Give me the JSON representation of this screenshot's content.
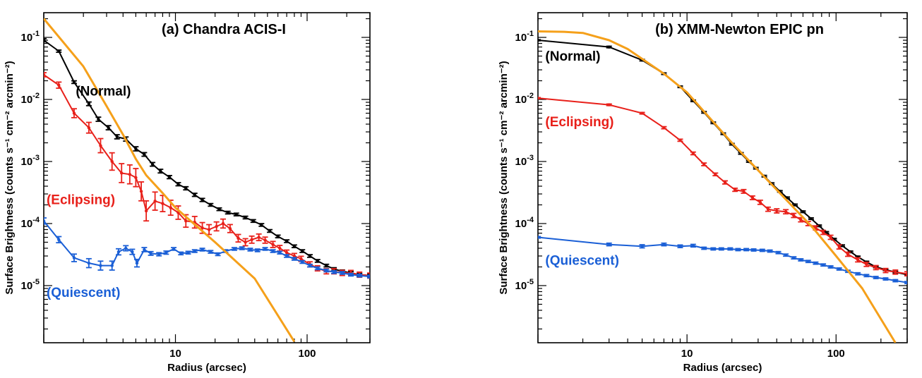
{
  "chart_data": [
    {
      "type": "line",
      "title": "(a) Chandra ACIS-I",
      "xlabel": "Radius (arcsec)",
      "ylabel": "Surface Brightness (counts s⁻¹ cm⁻² arcmin⁻²)",
      "xscale": "log",
      "yscale": "log",
      "xlim": [
        1.0,
        300
      ],
      "ylim": [
        1.2e-06,
        0.25
      ],
      "xticks": [
        {
          "v": 10,
          "label": "10"
        },
        {
          "v": 100,
          "label": "100"
        }
      ],
      "yticks": [
        {
          "v": 1e-05,
          "mant": "10",
          "exp": "-5"
        },
        {
          "v": 0.0001,
          "mant": "10",
          "exp": "-4"
        },
        {
          "v": 0.001,
          "mant": "10",
          "exp": "-3"
        },
        {
          "v": 0.01,
          "mant": "10",
          "exp": "-2"
        },
        {
          "v": 0.1,
          "mant": "10",
          "exp": "-1"
        }
      ],
      "series": [
        {
          "name": "(Normal)",
          "color": "#000000",
          "label_at": [
            1.75,
            0.0115
          ],
          "x": [
            1.0,
            1.3,
            1.7,
            2.2,
            2.6,
            3.1,
            3.6,
            4.2,
            5.0,
            5.8,
            6.7,
            7.7,
            9.0,
            10.5,
            12.0,
            14.0,
            16.0,
            18.5,
            21.5,
            25.0,
            29.0,
            34.0,
            39.0,
            45.0,
            52.0,
            60.0,
            70.0,
            80.0,
            92.0,
            105.0,
            120.0,
            140.0,
            160.0,
            185.0,
            215.0,
            250.0,
            300.0
          ],
          "y": [
            0.09,
            0.06,
            0.019,
            0.0085,
            0.0048,
            0.0035,
            0.0025,
            0.0023,
            0.0016,
            0.0013,
            0.0009,
            0.0007,
            0.00056,
            0.00043,
            0.00037,
            0.00029,
            0.00024,
            0.0002,
            0.00017,
            0.00015,
            0.00014,
            0.000125,
            0.00011,
            9.5e-05,
            7.6e-05,
            6.2e-05,
            5.2e-05,
            4.3e-05,
            3.6e-05,
            3e-05,
            2.5e-05,
            2.1e-05,
            1.85e-05,
            1.7e-05,
            1.6e-05,
            1.5e-05,
            1.45e-05
          ],
          "err": [
            0.06,
            0.04,
            0.05,
            0.07,
            0.08,
            0.08,
            0.08,
            0.08,
            0.08,
            0.07,
            0.07,
            0.07,
            0.06,
            0.06,
            0.06,
            0.06,
            0.06,
            0.05,
            0.05,
            0.05,
            0.05,
            0.05,
            0.05,
            0.05,
            0.05,
            0.05,
            0.05,
            0.05,
            0.05,
            0.05,
            0.05,
            0.05,
            0.05,
            0.05,
            0.05,
            0.05,
            0.05
          ]
        },
        {
          "name": "(Eclipsing)",
          "color": "#e8201a",
          "label_at": [
            1.05,
            0.000205
          ],
          "x": [
            1.0,
            1.3,
            1.7,
            2.2,
            2.7,
            3.3,
            3.9,
            4.5,
            5.0,
            5.5,
            6.0,
            7.0,
            8.0,
            9.2,
            10.5,
            12.0,
            14.0,
            16.0,
            18.0,
            20.5,
            23.0,
            26.0,
            30.0,
            34.0,
            38.0,
            43.0,
            48.0,
            55.0,
            62.0,
            70.0,
            80.0,
            90.0,
            105.0,
            120.0,
            140.0,
            160.0,
            185.0,
            215.0,
            250.0,
            300.0
          ],
          "y": [
            0.025,
            0.017,
            0.006,
            0.0035,
            0.0018,
            0.001,
            0.00065,
            0.00062,
            0.00055,
            0.00033,
            0.00016,
            0.00023,
            0.00021,
            0.00018,
            0.00015,
            0.00011,
            0.000105,
            8.5e-05,
            8e-05,
            9e-05,
            0.0001,
            8.3e-05,
            5.8e-05,
            5e-05,
            5.5e-05,
            6e-05,
            5.4e-05,
            4.6e-05,
            4e-05,
            3.4e-05,
            3e-05,
            2.7e-05,
            2.2e-05,
            1.9e-05,
            1.7e-05,
            1.7e-05,
            1.6e-05,
            1.6e-05,
            1.5e-05,
            1.45e-05
          ],
          "err": [
            0.08,
            0.12,
            0.18,
            0.22,
            0.3,
            0.38,
            0.42,
            0.42,
            0.4,
            0.42,
            0.45,
            0.4,
            0.35,
            0.32,
            0.28,
            0.26,
            0.24,
            0.22,
            0.2,
            0.18,
            0.18,
            0.16,
            0.15,
            0.14,
            0.14,
            0.13,
            0.12,
            0.12,
            0.11,
            0.1,
            0.1,
            0.1,
            0.1,
            0.1,
            0.1,
            0.1,
            0.1,
            0.1,
            0.1,
            0.1
          ]
        },
        {
          "name": "(Quiescent)",
          "color": "#1a5fd6",
          "label_at": [
            1.05,
            6.6e-06
          ],
          "x": [
            1.0,
            1.3,
            1.7,
            2.2,
            2.7,
            3.3,
            3.7,
            4.2,
            4.7,
            5.1,
            5.8,
            6.5,
            7.5,
            8.5,
            9.7,
            11.0,
            12.5,
            14.0,
            16.0,
            18.5,
            21.0,
            24.0,
            28.0,
            32.0,
            37.0,
            42.0,
            48.0,
            55.0,
            62.0,
            70.0,
            80.0,
            92.0,
            105.0,
            120.0,
            140.0,
            160.0,
            185.0,
            215.0,
            250.0,
            300.0
          ],
          "y": [
            0.00011,
            5.5e-05,
            2.8e-05,
            2.3e-05,
            2.1e-05,
            2.1e-05,
            3.5e-05,
            4e-05,
            3.5e-05,
            2.3e-05,
            3.8e-05,
            3.3e-05,
            3.2e-05,
            3.4e-05,
            3.9e-05,
            3.3e-05,
            3.4e-05,
            3.6e-05,
            3.8e-05,
            3.5e-05,
            3.2e-05,
            3.6e-05,
            3.9e-05,
            4e-05,
            3.8e-05,
            3.7e-05,
            3.9e-05,
            3.6e-05,
            3.4e-05,
            3e-05,
            2.7e-05,
            2.4e-05,
            2.1e-05,
            1.9e-05,
            1.75e-05,
            1.65e-05,
            1.6e-05,
            1.5e-05,
            1.45e-05,
            1.4e-05
          ],
          "err": [
            0.12,
            0.12,
            0.15,
            0.18,
            0.18,
            0.18,
            0.12,
            0.1,
            0.1,
            0.15,
            0.08,
            0.07,
            0.06,
            0.06,
            0.05,
            0.05,
            0.05,
            0.05,
            0.05,
            0.05,
            0.05,
            0.05,
            0.05,
            0.05,
            0.05,
            0.05,
            0.05,
            0.05,
            0.05,
            0.05,
            0.05,
            0.05,
            0.05,
            0.05,
            0.05,
            0.05,
            0.05,
            0.05,
            0.05,
            0.05
          ]
        },
        {
          "name": "",
          "color": "#f5a01a",
          "markers": false,
          "x": [
            1.0,
            2.0,
            3.0,
            4.0,
            5.0,
            6.0,
            8.0,
            10.0,
            20.0,
            40.0,
            80.0
          ],
          "y": [
            0.2,
            0.034,
            0.0078,
            0.0027,
            0.0011,
            0.0006,
            0.00031,
            0.00018,
            5e-05,
            1.3e-05,
            1.25e-06
          ]
        }
      ]
    },
    {
      "type": "line",
      "title": "(b) XMM-Newton EPIC pn",
      "xlabel": "Radius (arcsec)",
      "ylabel": "Surface Brightness (counts s⁻¹ cm⁻² arcmin⁻²)",
      "xscale": "log",
      "yscale": "log",
      "xlim": [
        1.0,
        300
      ],
      "ylim": [
        1.2e-06,
        0.25
      ],
      "xticks": [
        {
          "v": 10,
          "label": "10"
        },
        {
          "v": 100,
          "label": "100"
        }
      ],
      "yticks": [
        {
          "v": 1e-05,
          "mant": "10",
          "exp": "-5"
        },
        {
          "v": 0.0001,
          "mant": "10",
          "exp": "-4"
        },
        {
          "v": 0.001,
          "mant": "10",
          "exp": "-3"
        },
        {
          "v": 0.01,
          "mant": "10",
          "exp": "-2"
        },
        {
          "v": 0.1,
          "mant": "10",
          "exp": "-1"
        }
      ],
      "series": [
        {
          "name": "(Normal)",
          "color": "#000000",
          "label_at": [
            1.12,
            0.042
          ],
          "x": [
            1.0,
            3.0,
            5.0,
            7.0,
            9.0,
            11.0,
            13.0,
            15.0,
            17.5,
            20.0,
            23.0,
            26.0,
            29.0,
            33.0,
            37.0,
            42.0,
            47.0,
            53.0,
            60.0,
            68.0,
            77.0,
            86.0,
            97.0,
            110.0,
            125.0,
            140.0,
            160.0,
            185.0,
            215.0,
            250.0,
            300.0
          ],
          "y": [
            0.09,
            0.07,
            0.043,
            0.026,
            0.016,
            0.0095,
            0.0062,
            0.0042,
            0.0028,
            0.0019,
            0.00135,
            0.001,
            0.00078,
            0.00058,
            0.00044,
            0.00033,
            0.00026,
            0.0002,
            0.000155,
            0.00012,
            9.2e-05,
            7.2e-05,
            5.6e-05,
            4.4e-05,
            3.5e-05,
            2.9e-05,
            2.4e-05,
            2e-05,
            1.8e-05,
            1.65e-05,
            1.5e-05
          ],
          "err": [
            0.02,
            0.03,
            0.03,
            0.03,
            0.03,
            0.03,
            0.03,
            0.03,
            0.03,
            0.03,
            0.03,
            0.03,
            0.03,
            0.03,
            0.03,
            0.03,
            0.03,
            0.03,
            0.03,
            0.03,
            0.03,
            0.03,
            0.03,
            0.03,
            0.03,
            0.03,
            0.03,
            0.03,
            0.03,
            0.03,
            0.03
          ]
        },
        {
          "name": "(Eclipsing)",
          "color": "#e8201a",
          "label_at": [
            1.12,
            0.0037
          ],
          "x": [
            1.0,
            3.0,
            5.0,
            7.0,
            9.0,
            11.0,
            13.0,
            15.5,
            18.0,
            21.0,
            24.0,
            27.5,
            31.0,
            35.0,
            40.0,
            46.0,
            52.0,
            58.0,
            65.0,
            73.0,
            82.0,
            92.0,
            105.0,
            120.0,
            140.0,
            160.0,
            185.0,
            215.0,
            250.0,
            300.0
          ],
          "y": [
            0.0105,
            0.0082,
            0.006,
            0.0035,
            0.0022,
            0.00135,
            0.0009,
            0.00062,
            0.00046,
            0.00035,
            0.00033,
            0.00026,
            0.00022,
            0.00017,
            0.00016,
            0.000155,
            0.000135,
            0.000115,
            0.0001,
            8.5e-05,
            7.2e-05,
            6e-05,
            4.2e-05,
            3.2e-05,
            2.6e-05,
            2.2e-05,
            1.95e-05,
            1.75e-05,
            1.65e-05,
            1.55e-05
          ],
          "err": [
            0.02,
            0.03,
            0.03,
            0.04,
            0.04,
            0.05,
            0.05,
            0.05,
            0.06,
            0.06,
            0.07,
            0.07,
            0.08,
            0.08,
            0.08,
            0.08,
            0.08,
            0.08,
            0.08,
            0.08,
            0.08,
            0.08,
            0.08,
            0.08,
            0.08,
            0.08,
            0.08,
            0.08,
            0.08,
            0.08
          ]
        },
        {
          "name": "(Quiescent)",
          "color": "#1a5fd6",
          "label_at": [
            1.12,
            2.15e-05
          ],
          "x": [
            1.0,
            3.0,
            5.0,
            7.0,
            9.0,
            11.0,
            13.0,
            15.0,
            17.0,
            19.5,
            22.0,
            25.0,
            28.0,
            32.0,
            36.0,
            41.0,
            46.0,
            52.0,
            58.0,
            65.0,
            73.0,
            82.0,
            92.0,
            105.0,
            120.0,
            140.0,
            160.0,
            185.0,
            215.0,
            250.0,
            300.0
          ],
          "y": [
            6e-05,
            4.6e-05,
            4.3e-05,
            4.6e-05,
            4.3e-05,
            4.4e-05,
            4e-05,
            3.9e-05,
            3.9e-05,
            3.9e-05,
            3.8e-05,
            3.8e-05,
            3.75e-05,
            3.7e-05,
            3.6e-05,
            3.4e-05,
            3.1e-05,
            2.8e-05,
            2.6e-05,
            2.45e-05,
            2.3e-05,
            2.15e-05,
            2e-05,
            1.85e-05,
            1.7e-05,
            1.55e-05,
            1.45e-05,
            1.35e-05,
            1.28e-05,
            1.2e-05,
            1.12e-05
          ],
          "err": [
            0.03,
            0.05,
            0.06,
            0.05,
            0.05,
            0.05,
            0.04,
            0.04,
            0.04,
            0.04,
            0.04,
            0.04,
            0.04,
            0.04,
            0.04,
            0.04,
            0.04,
            0.04,
            0.04,
            0.04,
            0.04,
            0.04,
            0.04,
            0.04,
            0.04,
            0.04,
            0.04,
            0.04,
            0.04,
            0.04,
            0.04
          ]
        },
        {
          "name": "",
          "color": "#f5a01a",
          "markers": false,
          "x": [
            1.0,
            1.5,
            2.0,
            3.0,
            4.0,
            5.0,
            7.0,
            10.0,
            20.0,
            40.0,
            70.0,
            100.0,
            150.0,
            250.0
          ],
          "y": [
            0.125,
            0.123,
            0.118,
            0.09,
            0.065,
            0.045,
            0.026,
            0.013,
            0.002,
            0.00035,
            8.5e-05,
            3e-05,
            9e-06,
            1.2e-06
          ]
        }
      ]
    }
  ]
}
